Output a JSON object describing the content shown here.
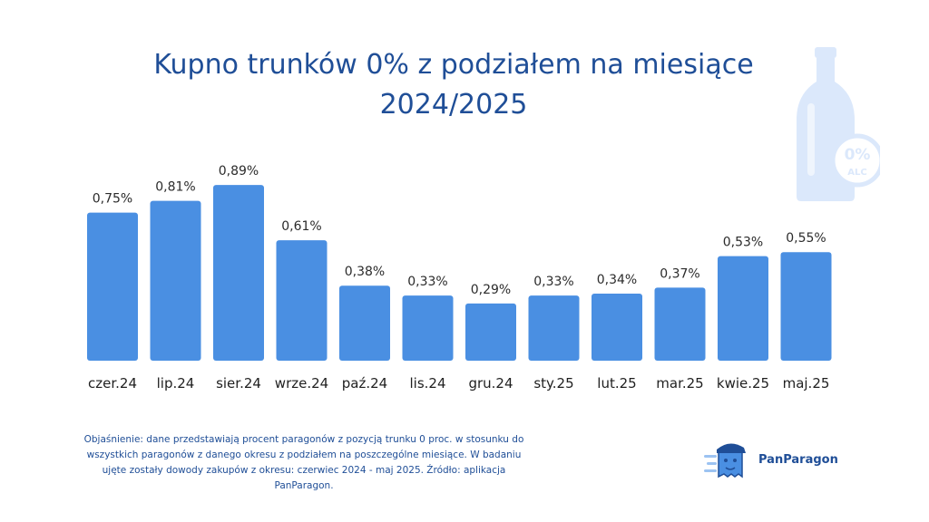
{
  "title_line1": "Kupno trunków 0% z podziałem na miesiące",
  "title_line2": "2024/2025",
  "bottle_badge": {
    "line1": "0%",
    "line2": "ALC"
  },
  "note": "Objaśnienie: dane przedstawiają procent paragonów z pozycją trunku 0 proc. w stosunku do wszystkich paragonów z danego okresu z podziałem na poszczególne miesiące. W badaniu ujęte zostały dowody zakupów z okresu: czerwiec 2024 - maj 2025. Źródło: aplikacja PanParagon.",
  "brand": {
    "name": "PanParagon"
  },
  "colors": {
    "bar": "#4a8fe2",
    "title": "#1f4e97",
    "bottle": "#dbe8fb"
  },
  "chart_data": {
    "type": "bar",
    "categories": [
      "czer.24",
      "lip.24",
      "sier.24",
      "wrze.24",
      "paź.24",
      "lis.24",
      "gru.24",
      "sty.25",
      "lut.25",
      "mar.25",
      "kwie.25",
      "maj.25"
    ],
    "values": [
      0.75,
      0.81,
      0.89,
      0.61,
      0.38,
      0.33,
      0.29,
      0.33,
      0.34,
      0.37,
      0.53,
      0.55
    ],
    "value_labels": [
      "0,75%",
      "0,81%",
      "0,89%",
      "0,61%",
      "0,38%",
      "0,33%",
      "0,29%",
      "0,33%",
      "0,34%",
      "0,37%",
      "0,53%",
      "0,55%"
    ],
    "unit": "%",
    "ylim": [
      0,
      0.9
    ],
    "grid": false,
    "legend": "none"
  }
}
